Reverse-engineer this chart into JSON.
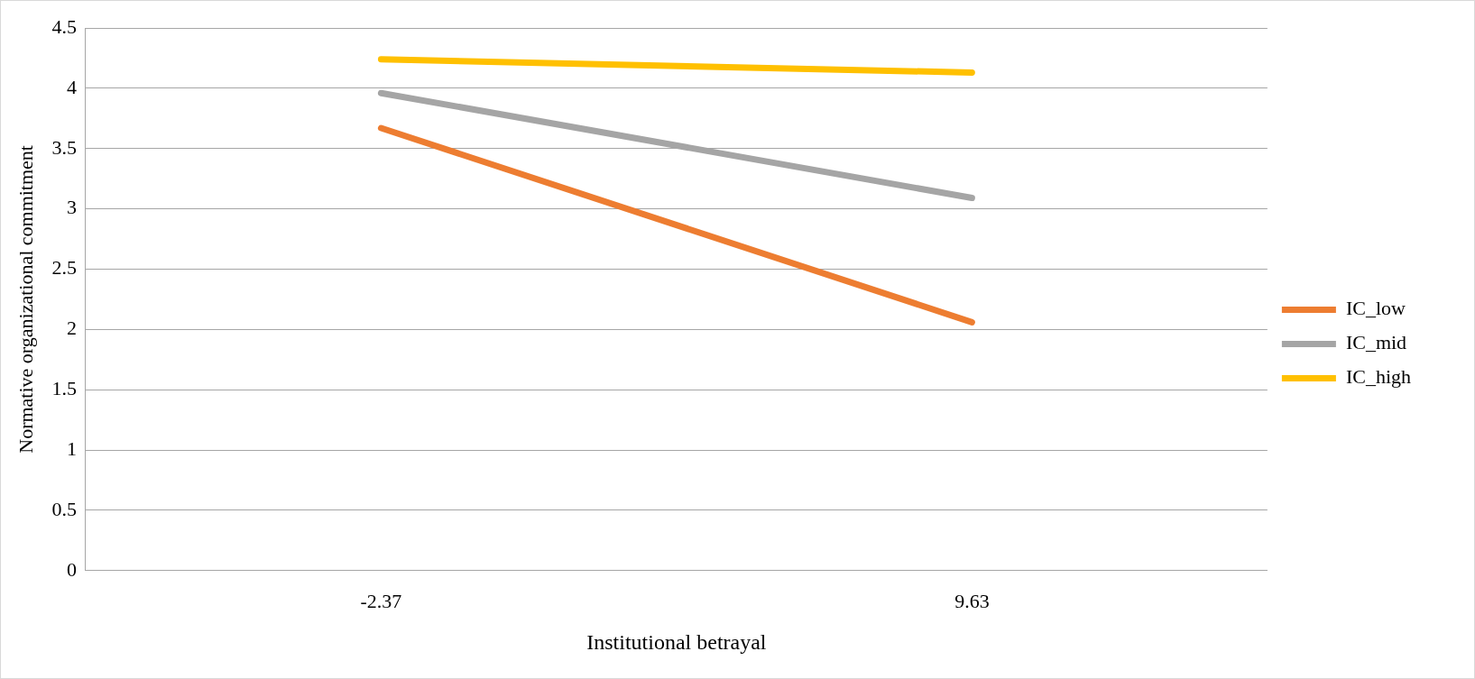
{
  "chart_data": {
    "type": "line",
    "xlabel": "Institutional betrayal",
    "ylabel": "Normative organizational commitment",
    "categories": [
      "-2.37",
      "9.63"
    ],
    "series": [
      {
        "name": "IC_low",
        "color": "#ed7d31",
        "values": [
          3.67,
          2.06
        ]
      },
      {
        "name": "IC_mid",
        "color": "#a5a5a5",
        "values": [
          3.96,
          3.09
        ]
      },
      {
        "name": "IC_high",
        "color": "#ffc000",
        "values": [
          4.24,
          4.13
        ]
      }
    ],
    "ylim": [
      0,
      4.5
    ],
    "yticks": [
      0,
      0.5,
      1,
      1.5,
      2,
      2.5,
      3,
      3.5,
      4,
      4.5
    ],
    "grid": "y",
    "legend": "right",
    "marker": "none",
    "line_style": "solid"
  }
}
